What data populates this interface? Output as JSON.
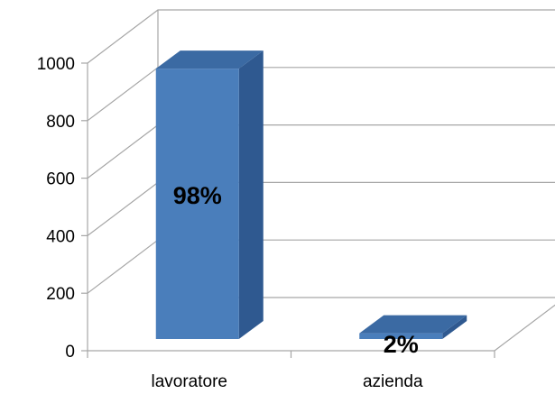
{
  "chart_data": {
    "type": "bar",
    "title": "",
    "xlabel": "",
    "ylabel": "",
    "categories": [
      "lavoratore",
      "azienda"
    ],
    "values": [
      940,
      20
    ],
    "data_labels": [
      "98%",
      "2%"
    ],
    "ylim": [
      0,
      1000
    ],
    "yticks": [
      "0",
      "200",
      "400",
      "600",
      "800",
      "1000"
    ],
    "grid": true,
    "legend": "none",
    "style": "3d-column"
  },
  "colors": {
    "bar_front": "#4a7ebb",
    "bar_side": "#2f5990",
    "bar_top": "#3b6aa3",
    "grid": "#a6a6a6"
  }
}
